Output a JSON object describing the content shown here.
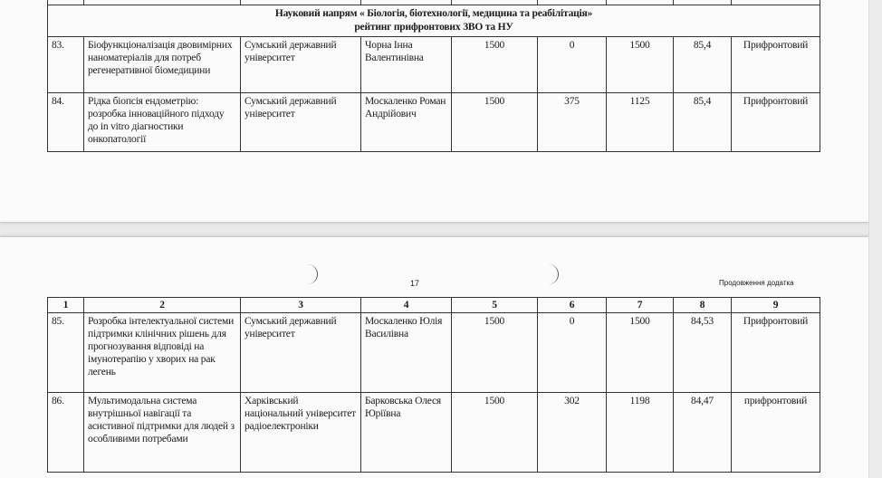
{
  "columns": [
    "1",
    "2",
    "3",
    "4",
    "5",
    "6",
    "7",
    "8",
    "9"
  ],
  "section_title_line1": "Науковий напрям « Біологія, біотехнології, медицина та реабілітація»",
  "section_title_line2": "рейтинг прифронтових ЗВО та НУ",
  "page_number": "17",
  "continuation": "Продовження додатка",
  "rows": [
    {
      "num": "83.",
      "title": "Біофункціоналізація двовимірних наноматеріалів для потреб регенеративної біомедицини",
      "institution": "Сумський державний університет",
      "leader": "Чорна Інна Валентинівна",
      "c5": "1500",
      "c6": "0",
      "c7": "1500",
      "c8": "85,4",
      "c9": "Прифронтовий"
    },
    {
      "num": "84.",
      "title": "Рідка біопсія ендометрію: розробка інноваційного підходу до in vitro діагностики онкопатології",
      "institution": "Сумський державний університет",
      "leader": "Москаленко Роман Андрійович",
      "c5": "1500",
      "c6": "375",
      "c7": "1125",
      "c8": "85,4",
      "c9": "Прифронтовий"
    },
    {
      "num": "85.",
      "title": "Розробка інтелектуальної системи підтримки клінічних рішень для прогнозування відповіді на імунотерапію у хворих на рак легень",
      "institution": "Сумський державний університет",
      "leader": "Москаленко Юлія Василівна",
      "c5": "1500",
      "c6": "0",
      "c7": "1500",
      "c8": "84,53",
      "c9": "Прифронтовий"
    },
    {
      "num": "86.",
      "title": "Мультимодальна система внутрішньої навігації та асистивної підтримки для людей з особливими потребами",
      "institution": "Харківський національний університет радіоелектроніки",
      "leader": "Барковська Олеся Юріївна",
      "c5": "1500",
      "c6": "302",
      "c7": "1198",
      "c8": "84,47",
      "c9": "прифронтовий"
    }
  ]
}
